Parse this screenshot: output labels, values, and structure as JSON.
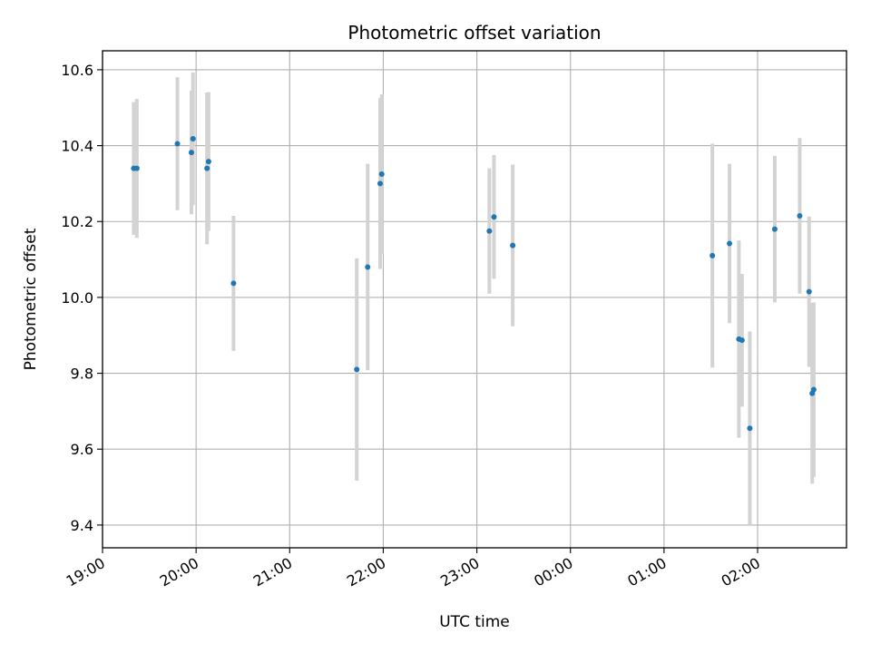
{
  "chart_data": {
    "type": "scatter",
    "title": "Photometric offset variation",
    "xlabel": "UTC time",
    "ylabel": "Photometric offset",
    "grid": true,
    "x_unit": "UTC hour",
    "xlim": [
      "19:00",
      "02:57"
    ],
    "ylim": [
      9.34,
      10.65
    ],
    "x_ticks": [
      "19:00",
      "20:00",
      "21:00",
      "22:00",
      "23:00",
      "00:00",
      "01:00",
      "02:00"
    ],
    "y_ticks": [
      "9.4",
      "9.6",
      "9.8",
      "10.0",
      "10.2",
      "10.4",
      "10.6"
    ],
    "colors": {
      "point": "#1f77b4",
      "errorbar": "#d3d3d3",
      "grid": "#b0b0b0"
    },
    "series": [
      {
        "points": [
          {
            "x": "19:20",
            "y": 10.34,
            "err": 0.175
          },
          {
            "x": "19:22",
            "y": 10.34,
            "err": 0.183
          },
          {
            "x": "19:48",
            "y": 10.405,
            "err": 0.175
          },
          {
            "x": "19:57",
            "y": 10.382,
            "err": 0.163
          },
          {
            "x": "19:58",
            "y": 10.418,
            "err": 0.175
          },
          {
            "x": "20:07",
            "y": 10.34,
            "err": 0.2
          },
          {
            "x": "20:08",
            "y": 10.358,
            "err": 0.183
          },
          {
            "x": "20:24",
            "y": 10.037,
            "err": 0.178
          },
          {
            "x": "21:43",
            "y": 9.81,
            "err": 0.293
          },
          {
            "x": "21:50",
            "y": 10.08,
            "err": 0.272
          },
          {
            "x": "21:58",
            "y": 10.3,
            "err": 0.225
          },
          {
            "x": "21:59",
            "y": 10.325,
            "err": 0.21
          },
          {
            "x": "23:08",
            "y": 10.175,
            "err": 0.165
          },
          {
            "x": "23:11",
            "y": 10.212,
            "err": 0.163
          },
          {
            "x": "23:23",
            "y": 10.137,
            "err": 0.213
          },
          {
            "x": "01:31",
            "y": 10.11,
            "err": 0.295
          },
          {
            "x": "01:42",
            "y": 10.142,
            "err": 0.21
          },
          {
            "x": "01:48",
            "y": 9.89,
            "err": 0.26
          },
          {
            "x": "01:50",
            "y": 9.887,
            "err": 0.175
          },
          {
            "x": "01:55",
            "y": 9.655,
            "err": 0.255
          },
          {
            "x": "02:11",
            "y": 10.18,
            "err": 0.193
          },
          {
            "x": "02:27",
            "y": 10.215,
            "err": 0.205
          },
          {
            "x": "02:33",
            "y": 10.015,
            "err": 0.198
          },
          {
            "x": "02:35",
            "y": 9.747,
            "err": 0.238
          },
          {
            "x": "02:36",
            "y": 9.757,
            "err": 0.23
          }
        ]
      }
    ]
  }
}
